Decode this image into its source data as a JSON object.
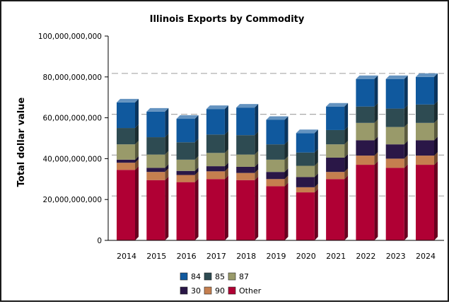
{
  "chart_data": {
    "type": "bar",
    "stacked": true,
    "three_d": true,
    "title": "Illinois Exports by Commodity",
    "xlabel": "",
    "ylabel": "Total dollar value",
    "ylim": [
      0,
      100000000000
    ],
    "yticks": [
      0,
      20000000000,
      40000000000,
      60000000000,
      80000000000,
      100000000000
    ],
    "ytick_labels": [
      "0",
      "20,000,000,000",
      "40,000,000,000",
      "60,000,000,000",
      "80,000,000,000",
      "100,000,000,000"
    ],
    "grid": "horizontal-dashed",
    "legend_position": "bottom",
    "categories": [
      "2014",
      "2015",
      "2016",
      "2017",
      "2018",
      "2019",
      "2020",
      "2021",
      "2022",
      "2023",
      "2024"
    ],
    "series": [
      {
        "name": "Other",
        "color": "#b00034",
        "values": [
          34500000000,
          29500000000,
          28500000000,
          30000000000,
          29500000000,
          26500000000,
          23500000000,
          30000000000,
          37000000000,
          35500000000,
          37000000000
        ]
      },
      {
        "name": "90",
        "color": "#c57f4f",
        "values": [
          3500000000,
          4000000000,
          3500000000,
          3800000000,
          3500000000,
          3500000000,
          2500000000,
          3500000000,
          4500000000,
          4500000000,
          4500000000
        ]
      },
      {
        "name": "30",
        "color": "#2a1747",
        "values": [
          1500000000,
          2000000000,
          2000000000,
          2500000000,
          3000000000,
          3500000000,
          5000000000,
          7000000000,
          7500000000,
          7000000000,
          7500000000
        ]
      },
      {
        "name": "87",
        "color": "#999a6a",
        "values": [
          7500000000,
          6500000000,
          5500000000,
          6500000000,
          6000000000,
          6000000000,
          5500000000,
          6500000000,
          8500000000,
          8500000000,
          8500000000
        ]
      },
      {
        "name": "85",
        "color": "#2e4b52",
        "values": [
          8000000000,
          8500000000,
          8500000000,
          9000000000,
          9500000000,
          7500000000,
          6500000000,
          7000000000,
          8000000000,
          9000000000,
          9000000000
        ]
      },
      {
        "name": "84",
        "color": "#10599e",
        "values": [
          12500000000,
          12500000000,
          11500000000,
          12500000000,
          13500000000,
          12000000000,
          9500000000,
          11500000000,
          13500000000,
          14500000000,
          13500000000
        ]
      }
    ]
  },
  "legend": {
    "rows": [
      [
        {
          "label": "84",
          "color": "#10599e"
        },
        {
          "label": "85",
          "color": "#2e4b52"
        },
        {
          "label": "87",
          "color": "#999a6a"
        }
      ],
      [
        {
          "label": "30",
          "color": "#2a1747"
        },
        {
          "label": "90",
          "color": "#c57f4f"
        },
        {
          "label": "Other",
          "color": "#b00034"
        }
      ]
    ]
  }
}
